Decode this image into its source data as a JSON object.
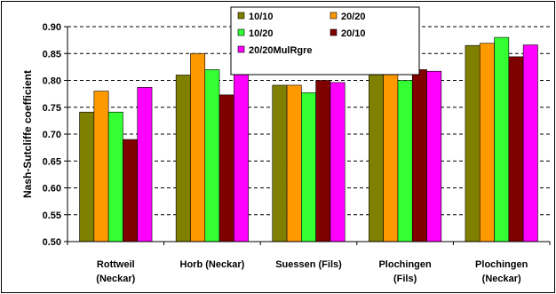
{
  "chart_data": {
    "type": "bar",
    "title": "",
    "xlabel": "",
    "ylabel": "Nash-Sutcliffe coefficient",
    "ylim": [
      0.5,
      0.9
    ],
    "yticks": [
      "0.50",
      "0.55",
      "0.60",
      "0.65",
      "0.70",
      "0.75",
      "0.80",
      "0.85",
      "0.90"
    ],
    "grid": "horizontal dashed",
    "legend_position": "top-center",
    "categories": [
      [
        "Rottweil",
        "(Neckar)"
      ],
      [
        "Horb (Neckar)"
      ],
      [
        "Suessen (Fils)"
      ],
      [
        "Plochingen",
        "(Fils)"
      ],
      [
        "Plochingen",
        "(Neckar)"
      ]
    ],
    "series": [
      {
        "name": "10/10",
        "color": "#808000",
        "values": [
          0.741,
          0.81,
          0.791,
          0.82,
          0.865
        ]
      },
      {
        "name": "20/20",
        "color": "#FF9900",
        "values": [
          0.78,
          0.85,
          0.791,
          0.811,
          0.869
        ]
      },
      {
        "name": "10/20",
        "color": "#33FF33",
        "values": [
          0.741,
          0.82,
          0.777,
          0.8,
          0.88
        ]
      },
      {
        "name": "20/10",
        "color": "#800000",
        "values": [
          0.69,
          0.773,
          0.8,
          0.82,
          0.844
        ]
      },
      {
        "name": "20/20MulRgre",
        "color": "#FF00FF",
        "values": [
          0.787,
          0.834,
          0.796,
          0.817,
          0.866
        ]
      }
    ]
  }
}
